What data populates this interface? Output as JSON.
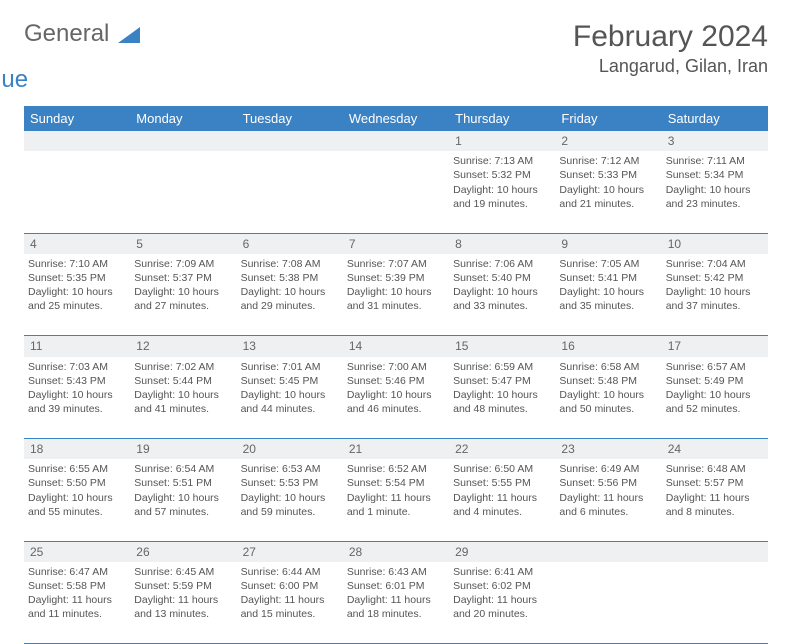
{
  "brand": {
    "part1": "General",
    "part2": "Blue",
    "logo_color": "#3b82c4"
  },
  "title": "February 2024",
  "location": "Langarud, Gilan, Iran",
  "header_bg": "#3b82c4",
  "daynum_bg": "#eef0f1",
  "weekdays": [
    "Sunday",
    "Monday",
    "Tuesday",
    "Wednesday",
    "Thursday",
    "Friday",
    "Saturday"
  ],
  "weeks": [
    {
      "nums": [
        "",
        "",
        "",
        "",
        "1",
        "2",
        "3"
      ],
      "cells": [
        null,
        null,
        null,
        null,
        {
          "sunrise": "Sunrise: 7:13 AM",
          "sunset": "Sunset: 5:32 PM",
          "day1": "Daylight: 10 hours",
          "day2": "and 19 minutes."
        },
        {
          "sunrise": "Sunrise: 7:12 AM",
          "sunset": "Sunset: 5:33 PM",
          "day1": "Daylight: 10 hours",
          "day2": "and 21 minutes."
        },
        {
          "sunrise": "Sunrise: 7:11 AM",
          "sunset": "Sunset: 5:34 PM",
          "day1": "Daylight: 10 hours",
          "day2": "and 23 minutes."
        }
      ]
    },
    {
      "nums": [
        "4",
        "5",
        "6",
        "7",
        "8",
        "9",
        "10"
      ],
      "cells": [
        {
          "sunrise": "Sunrise: 7:10 AM",
          "sunset": "Sunset: 5:35 PM",
          "day1": "Daylight: 10 hours",
          "day2": "and 25 minutes."
        },
        {
          "sunrise": "Sunrise: 7:09 AM",
          "sunset": "Sunset: 5:37 PM",
          "day1": "Daylight: 10 hours",
          "day2": "and 27 minutes."
        },
        {
          "sunrise": "Sunrise: 7:08 AM",
          "sunset": "Sunset: 5:38 PM",
          "day1": "Daylight: 10 hours",
          "day2": "and 29 minutes."
        },
        {
          "sunrise": "Sunrise: 7:07 AM",
          "sunset": "Sunset: 5:39 PM",
          "day1": "Daylight: 10 hours",
          "day2": "and 31 minutes."
        },
        {
          "sunrise": "Sunrise: 7:06 AM",
          "sunset": "Sunset: 5:40 PM",
          "day1": "Daylight: 10 hours",
          "day2": "and 33 minutes."
        },
        {
          "sunrise": "Sunrise: 7:05 AM",
          "sunset": "Sunset: 5:41 PM",
          "day1": "Daylight: 10 hours",
          "day2": "and 35 minutes."
        },
        {
          "sunrise": "Sunrise: 7:04 AM",
          "sunset": "Sunset: 5:42 PM",
          "day1": "Daylight: 10 hours",
          "day2": "and 37 minutes."
        }
      ]
    },
    {
      "nums": [
        "11",
        "12",
        "13",
        "14",
        "15",
        "16",
        "17"
      ],
      "cells": [
        {
          "sunrise": "Sunrise: 7:03 AM",
          "sunset": "Sunset: 5:43 PM",
          "day1": "Daylight: 10 hours",
          "day2": "and 39 minutes."
        },
        {
          "sunrise": "Sunrise: 7:02 AM",
          "sunset": "Sunset: 5:44 PM",
          "day1": "Daylight: 10 hours",
          "day2": "and 41 minutes."
        },
        {
          "sunrise": "Sunrise: 7:01 AM",
          "sunset": "Sunset: 5:45 PM",
          "day1": "Daylight: 10 hours",
          "day2": "and 44 minutes."
        },
        {
          "sunrise": "Sunrise: 7:00 AM",
          "sunset": "Sunset: 5:46 PM",
          "day1": "Daylight: 10 hours",
          "day2": "and 46 minutes."
        },
        {
          "sunrise": "Sunrise: 6:59 AM",
          "sunset": "Sunset: 5:47 PM",
          "day1": "Daylight: 10 hours",
          "day2": "and 48 minutes."
        },
        {
          "sunrise": "Sunrise: 6:58 AM",
          "sunset": "Sunset: 5:48 PM",
          "day1": "Daylight: 10 hours",
          "day2": "and 50 minutes."
        },
        {
          "sunrise": "Sunrise: 6:57 AM",
          "sunset": "Sunset: 5:49 PM",
          "day1": "Daylight: 10 hours",
          "day2": "and 52 minutes."
        }
      ]
    },
    {
      "nums": [
        "18",
        "19",
        "20",
        "21",
        "22",
        "23",
        "24"
      ],
      "cells": [
        {
          "sunrise": "Sunrise: 6:55 AM",
          "sunset": "Sunset: 5:50 PM",
          "day1": "Daylight: 10 hours",
          "day2": "and 55 minutes."
        },
        {
          "sunrise": "Sunrise: 6:54 AM",
          "sunset": "Sunset: 5:51 PM",
          "day1": "Daylight: 10 hours",
          "day2": "and 57 minutes."
        },
        {
          "sunrise": "Sunrise: 6:53 AM",
          "sunset": "Sunset: 5:53 PM",
          "day1": "Daylight: 10 hours",
          "day2": "and 59 minutes."
        },
        {
          "sunrise": "Sunrise: 6:52 AM",
          "sunset": "Sunset: 5:54 PM",
          "day1": "Daylight: 11 hours",
          "day2": "and 1 minute."
        },
        {
          "sunrise": "Sunrise: 6:50 AM",
          "sunset": "Sunset: 5:55 PM",
          "day1": "Daylight: 11 hours",
          "day2": "and 4 minutes."
        },
        {
          "sunrise": "Sunrise: 6:49 AM",
          "sunset": "Sunset: 5:56 PM",
          "day1": "Daylight: 11 hours",
          "day2": "and 6 minutes."
        },
        {
          "sunrise": "Sunrise: 6:48 AM",
          "sunset": "Sunset: 5:57 PM",
          "day1": "Daylight: 11 hours",
          "day2": "and 8 minutes."
        }
      ]
    },
    {
      "nums": [
        "25",
        "26",
        "27",
        "28",
        "29",
        "",
        ""
      ],
      "cells": [
        {
          "sunrise": "Sunrise: 6:47 AM",
          "sunset": "Sunset: 5:58 PM",
          "day1": "Daylight: 11 hours",
          "day2": "and 11 minutes."
        },
        {
          "sunrise": "Sunrise: 6:45 AM",
          "sunset": "Sunset: 5:59 PM",
          "day1": "Daylight: 11 hours",
          "day2": "and 13 minutes."
        },
        {
          "sunrise": "Sunrise: 6:44 AM",
          "sunset": "Sunset: 6:00 PM",
          "day1": "Daylight: 11 hours",
          "day2": "and 15 minutes."
        },
        {
          "sunrise": "Sunrise: 6:43 AM",
          "sunset": "Sunset: 6:01 PM",
          "day1": "Daylight: 11 hours",
          "day2": "and 18 minutes."
        },
        {
          "sunrise": "Sunrise: 6:41 AM",
          "sunset": "Sunset: 6:02 PM",
          "day1": "Daylight: 11 hours",
          "day2": "and 20 minutes."
        },
        null,
        null
      ]
    }
  ]
}
